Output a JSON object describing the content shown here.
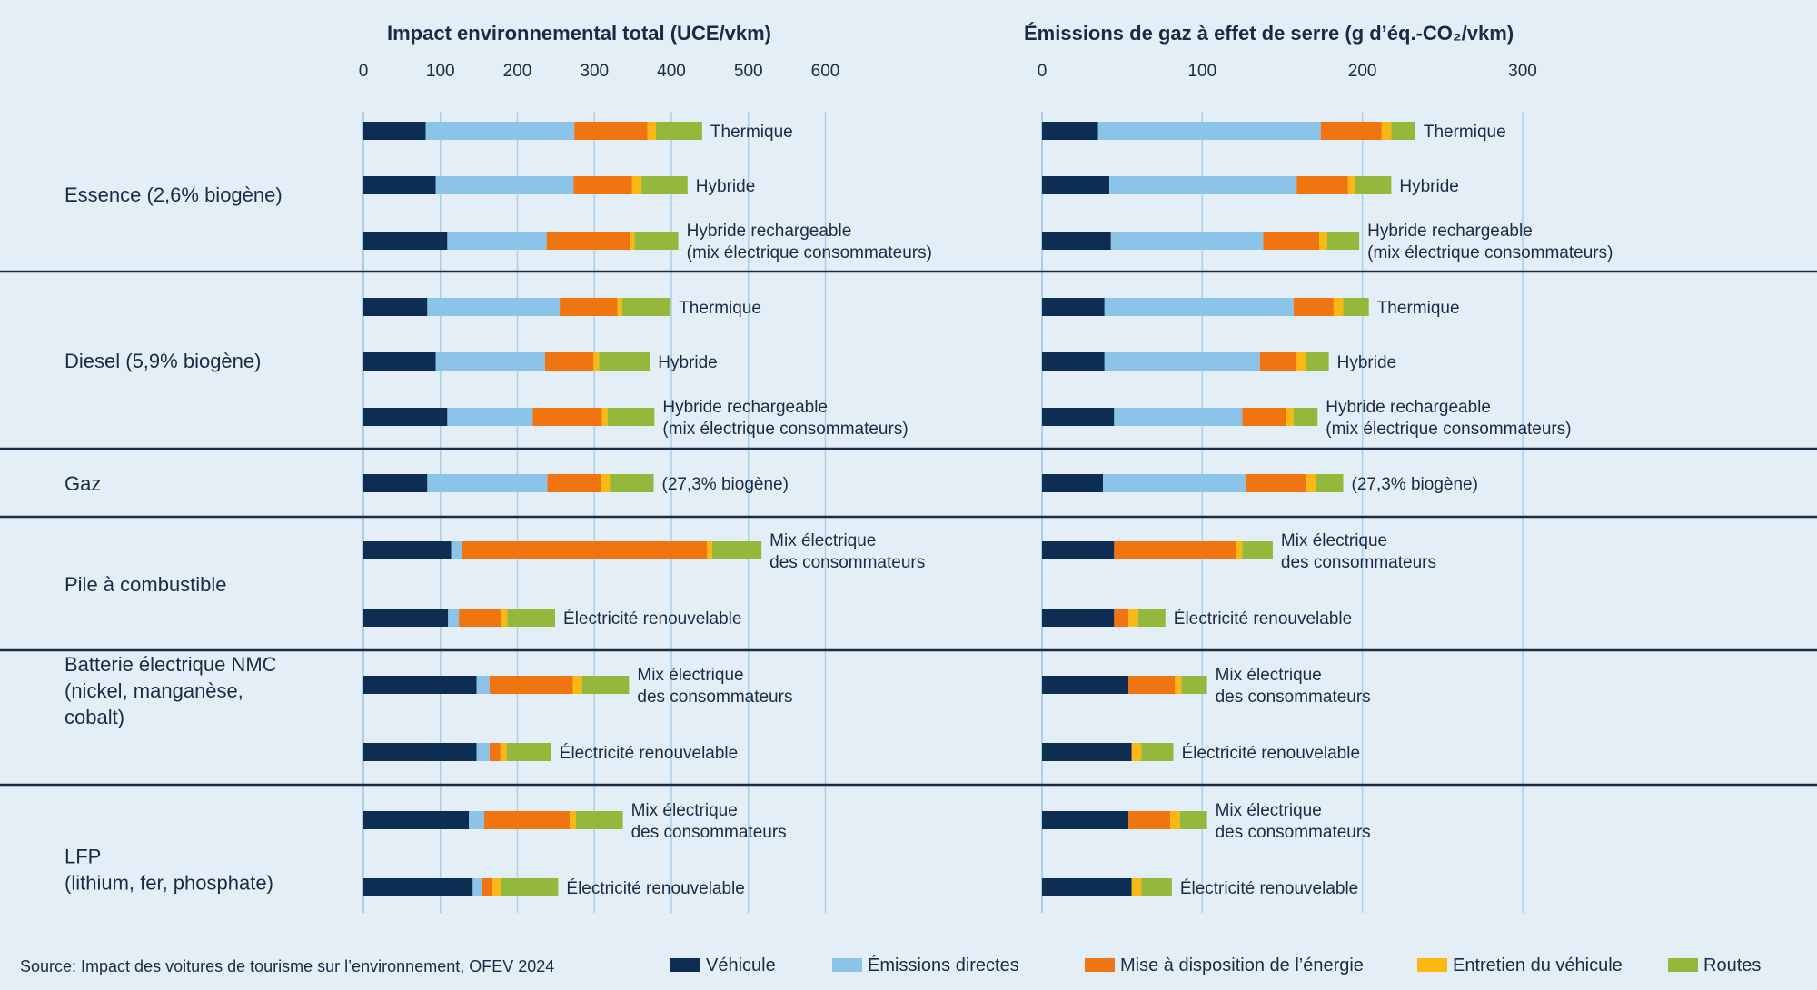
{
  "source": "Source: Impact des voitures de tourisme sur l’environnement, OFEV 2024",
  "legend": [
    {
      "name": "Véhicule",
      "color": "#0d2d52"
    },
    {
      "name": "Émissions directes",
      "color": "#8cc3e8"
    },
    {
      "name": "Mise à disposition de l’énergie",
      "color": "#f07410"
    },
    {
      "name": "Entretien du véhicule",
      "color": "#fbb812"
    },
    {
      "name": "Routes",
      "color": "#94b83c"
    }
  ],
  "groups": [
    {
      "label": [
        "Essence (2,6% biogène)"
      ]
    },
    {
      "label": [
        "Diesel (5,9% biogène)"
      ]
    },
    {
      "label": [
        "Gaz"
      ]
    },
    {
      "label": [
        "Pile à combustible"
      ]
    },
    {
      "label": [
        "Batterie électrique NMC",
        "(nickel, manganèse,",
        "cobalt)"
      ]
    },
    {
      "label": [
        "LFP",
        "(lithium, fer, phosphate)"
      ]
    }
  ],
  "rows": [
    {
      "group": 0,
      "label": [
        "Thermique"
      ]
    },
    {
      "group": 0,
      "label": [
        "Hybride"
      ]
    },
    {
      "group": 0,
      "label": [
        "Hybride rechargeable",
        "(mix électrique consommateurs)"
      ]
    },
    {
      "group": 1,
      "label": [
        "Thermique"
      ]
    },
    {
      "group": 1,
      "label": [
        "Hybride"
      ]
    },
    {
      "group": 1,
      "label": [
        "Hybride rechargeable",
        "(mix électrique consommateurs)"
      ]
    },
    {
      "group": 2,
      "label": [
        "(27,3% biogène)"
      ]
    },
    {
      "group": 3,
      "label": [
        "Mix électrique",
        "des consommateurs"
      ]
    },
    {
      "group": 3,
      "label": [
        "Électricité renouvelable"
      ]
    },
    {
      "group": 4,
      "label": [
        "Mix électrique",
        "des consommateurs"
      ]
    },
    {
      "group": 4,
      "label": [
        "Électricité renouvelable"
      ]
    },
    {
      "group": 5,
      "label": [
        "Mix électrique",
        "des consommateurs"
      ]
    },
    {
      "group": 5,
      "label": [
        "Électricité renouvelable"
      ]
    }
  ],
  "chart_data": [
    {
      "type": "bar",
      "orientation": "horizontal",
      "stacked": true,
      "title": "Impact environnemental total (UCE/vkm)",
      "xlim": [
        0,
        600
      ],
      "xticks": [
        0,
        100,
        200,
        300,
        400,
        500,
        600
      ],
      "grid": true,
      "series": [
        {
          "name": "Véhicule",
          "values": [
            81,
            94,
            109,
            83,
            94,
            109,
            83,
            114,
            110,
            147,
            147,
            137,
            142
          ]
        },
        {
          "name": "Émissions directes",
          "values": [
            193,
            179,
            129,
            172,
            142,
            111,
            156,
            14,
            14,
            17,
            17,
            20,
            12
          ]
        },
        {
          "name": "Mise à disposition de l’énergie",
          "values": [
            95,
            76,
            108,
            75,
            63,
            90,
            70,
            318,
            55,
            108,
            14,
            111,
            14
          ]
        },
        {
          "name": "Entretien du véhicule",
          "values": [
            11,
            12,
            6,
            6,
            7,
            7,
            11,
            7,
            8,
            12,
            8,
            8,
            10
          ]
        },
        {
          "name": "Routes",
          "values": [
            60,
            60,
            57,
            63,
            66,
            61,
            57,
            64,
            62,
            61,
            58,
            61,
            75
          ]
        }
      ]
    },
    {
      "type": "bar",
      "orientation": "horizontal",
      "stacked": true,
      "title": "Émissions de gaz à effet de serre (g d’éq.-CO₂/vkm)",
      "xlim": [
        0,
        300
      ],
      "xticks": [
        0,
        100,
        200,
        300
      ],
      "grid": true,
      "series": [
        {
          "name": "Véhicule",
          "values": [
            35,
            42,
            43,
            39,
            39,
            45,
            38,
            45,
            45,
            54,
            56,
            54,
            56
          ]
        },
        {
          "name": "Émissions directes",
          "values": [
            139,
            117,
            95,
            118,
            97,
            80,
            89,
            0,
            0,
            0,
            0,
            0,
            0
          ]
        },
        {
          "name": "Mise à disposition de l’énergie",
          "values": [
            38,
            32,
            35,
            25,
            23,
            27,
            38,
            76,
            9,
            29,
            0,
            26,
            0
          ]
        },
        {
          "name": "Entretien du véhicule",
          "values": [
            6,
            4,
            5,
            6,
            6,
            5,
            6,
            4,
            6,
            4,
            6,
            6,
            6
          ]
        },
        {
          "name": "Routes",
          "values": [
            15,
            23,
            20,
            16,
            14,
            15,
            17,
            19,
            17,
            16,
            20,
            17,
            19
          ]
        }
      ]
    }
  ]
}
